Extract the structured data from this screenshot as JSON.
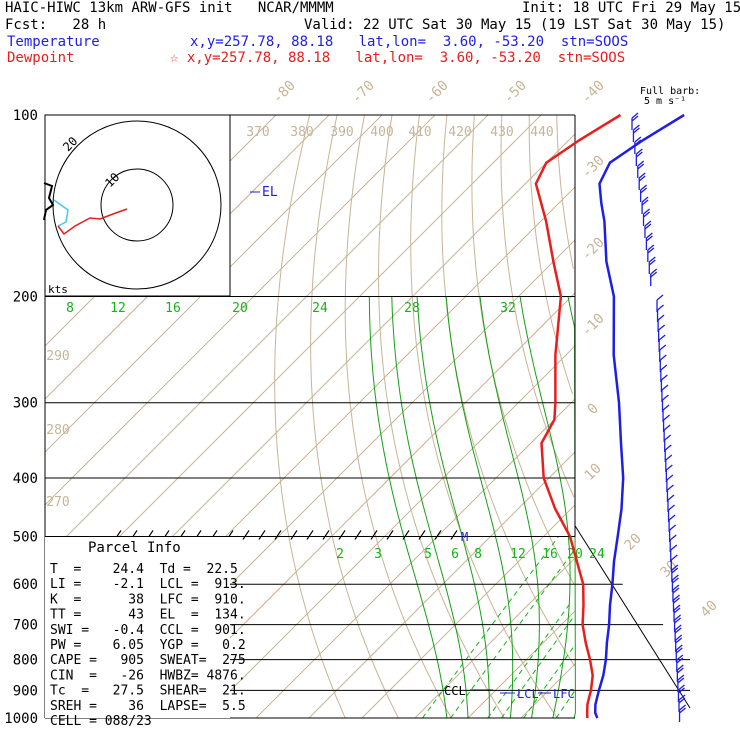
{
  "header": {
    "line1_left": "HAIC-HIWC 13km ARW-GFS init   NCAR/MMMM",
    "line1_right": "Init: 18 UTC Fri 29 May 15",
    "line2_left": "Fcst:   28 h",
    "line2_right": "Valid: 22 UTC Sat 30 May 15 (19 LST Sat 30 May 15)",
    "temp_label": "Temperature",
    "temp_info": "x,y=257.78, 88.18   lat,lon=  3.60, -53.20  stn=SOOS",
    "dew_label": "Dewpoint",
    "dew_info": "☆ x,y=257.78, 88.18   lat,lon=  3.60, -53.20  stn=SOOS"
  },
  "barb_header": {
    "line1": "Full barb:",
    "line2": "5 m s⁻¹"
  },
  "hodograph": {
    "rings": [
      "10",
      "20"
    ],
    "units": "kts"
  },
  "parcel": {
    "title": "Parcel Info",
    "rows": [
      "T  =    24.4  Td =  22.5",
      "LI =    -2.1  LCL =  913.",
      "K  =      38  LFC =  910.",
      "TT =      43  EL  =  134.",
      "SWI =   -0.4  CCL =  901.",
      "PW =    6.05  YGP =   0.2",
      "CAPE =   905  SWEAT=  275",
      "CIN  =   -26  HWBZ= 4876.",
      "Tc  =   27.5  SHEAR=  21.",
      "SREH =    36  LAPSE=  5.5",
      "CELL = 088/23"
    ]
  },
  "colors": {
    "temperature": "#1e1ee6",
    "dewpoint": "#e61e1e",
    "isotherm": "#c8b496",
    "dry_adiabat": "#c8b496",
    "moist_adiabat": "#14a014",
    "mixing_ratio": "#14b414",
    "isobar": "#000000",
    "hodo_trace": "#e61e1e",
    "hodo_low": "#46c8f0",
    "barbs": "#1e1ee6"
  },
  "chart_data": {
    "type": "line",
    "subtype": "skew-T log-p sounding",
    "pressure_levels": [
      100,
      200,
      300,
      400,
      500,
      600,
      700,
      800,
      900,
      1000
    ],
    "isotherm_labels": [
      "-80",
      "-70",
      "-60",
      "-50",
      "-40",
      "-30",
      "-20",
      "-10",
      "0",
      "10",
      "20",
      "30",
      "40"
    ],
    "theta_labels": [
      "370",
      "380",
      "390",
      "400",
      "410",
      "420",
      "430",
      "440",
      "290",
      "280",
      "270"
    ],
    "mixing_ratio_labels_upper": [
      "8",
      "12",
      "16",
      "20",
      "24",
      "28",
      "32"
    ],
    "mixing_ratio_labels_lower": [
      "2",
      "3",
      "5",
      "6",
      "8",
      "12",
      "16",
      "20",
      "24"
    ],
    "level_annotations": [
      "EL",
      "M",
      "CCL",
      "LCL",
      "LFC"
    ],
    "series": [
      {
        "name": "Temperature",
        "points": [
          [
            1000,
            24.4
          ],
          [
            980,
            23.0
          ],
          [
            950,
            21.5
          ],
          [
            925,
            20.5
          ],
          [
            900,
            19.5
          ],
          [
            850,
            17.5
          ],
          [
            800,
            15.0
          ],
          [
            750,
            12.0
          ],
          [
            700,
            9.0
          ],
          [
            650,
            5.5
          ],
          [
            600,
            2.0
          ],
          [
            550,
            -2.0
          ],
          [
            500,
            -6.0
          ],
          [
            450,
            -10.5
          ],
          [
            400,
            -16.0
          ],
          [
            350,
            -23.0
          ],
          [
            300,
            -31.0
          ],
          [
            250,
            -41.0
          ],
          [
            200,
            -52.0
          ],
          [
            175,
            -60.0
          ],
          [
            150,
            -68.0
          ],
          [
            140,
            -72.0
          ],
          [
            130,
            -76.0
          ],
          [
            120,
            -78.0
          ],
          [
            110,
            -76.0
          ],
          [
            100,
            -73.0
          ]
        ]
      },
      {
        "name": "Dewpoint",
        "points": [
          [
            1000,
            22.5
          ],
          [
            980,
            21.5
          ],
          [
            950,
            20.0
          ],
          [
            925,
            19.0
          ],
          [
            900,
            18.0
          ],
          [
            850,
            15.5
          ],
          [
            800,
            12.0
          ],
          [
            750,
            8.0
          ],
          [
            700,
            4.0
          ],
          [
            650,
            0.5
          ],
          [
            600,
            -3.5
          ],
          [
            550,
            -9.0
          ],
          [
            500,
            -15.0
          ],
          [
            450,
            -23.0
          ],
          [
            400,
            -31.0
          ],
          [
            350,
            -38.0
          ],
          [
            320,
            -40.0
          ],
          [
            300,
            -43.0
          ],
          [
            250,
            -52.0
          ],
          [
            200,
            -62.0
          ],
          [
            175,
            -70.0
          ],
          [
            150,
            -79.0
          ],
          [
            130,
            -88.0
          ],
          [
            120,
            -90.0
          ],
          [
            110,
            -88.0
          ],
          [
            100,
            -85.0
          ]
        ]
      }
    ]
  }
}
